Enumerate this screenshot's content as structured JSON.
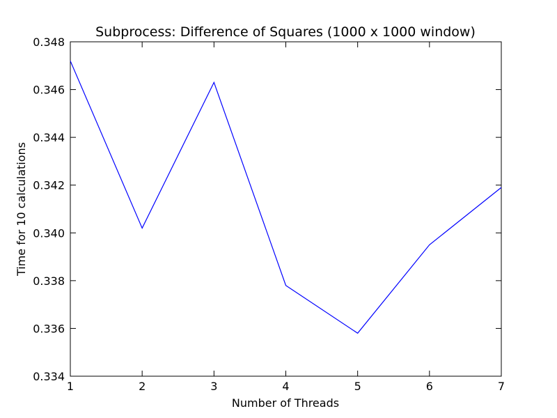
{
  "chart_data": {
    "type": "line",
    "title": "Subprocess: Difference of Squares (1000 x 1000 window)",
    "xlabel": "Number of Threads",
    "ylabel": "Time for 10 calculations",
    "xlim": [
      1,
      7
    ],
    "ylim": [
      0.334,
      0.348
    ],
    "x_ticks": [
      "1",
      "2",
      "3",
      "4",
      "5",
      "6",
      "7"
    ],
    "y_ticks": [
      "0.334",
      "0.336",
      "0.338",
      "0.340",
      "0.342",
      "0.344",
      "0.346",
      "0.348"
    ],
    "grid": false,
    "legend": "none",
    "series": [
      {
        "color": "#0000ff",
        "x": [
          1,
          2,
          3,
          4,
          5,
          6,
          7
        ],
        "y": [
          0.3472,
          0.3402,
          0.3463,
          0.3378,
          0.3358,
          0.3395,
          0.3419
        ]
      }
    ]
  }
}
